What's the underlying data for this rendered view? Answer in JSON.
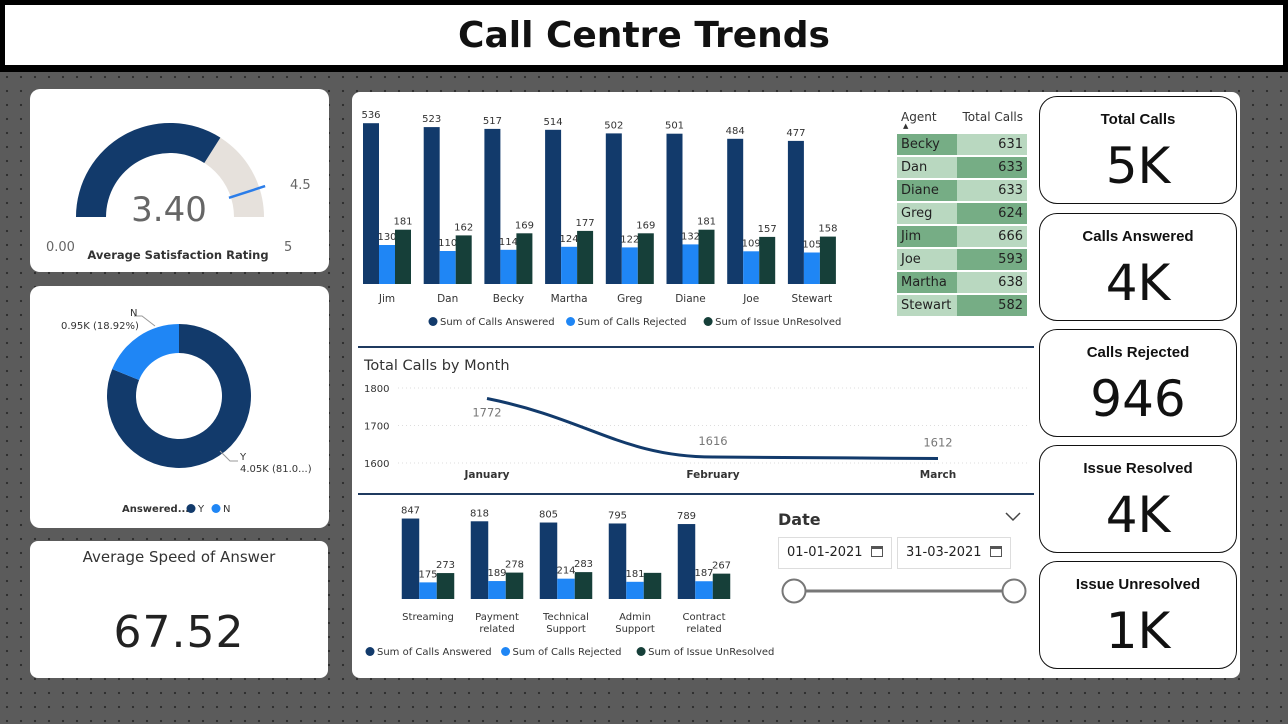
{
  "title": "Call Centre Trends",
  "gauge": {
    "value": "3.40",
    "min": "0.00",
    "max": "5",
    "target": "4.5",
    "label": "Average Satisfaction Rating",
    "value_num": 3.4,
    "max_num": 5,
    "target_num": 4.5
  },
  "donut": {
    "n_label": "N",
    "n_value": "0.95K (18.92%)",
    "y_label": "Y",
    "y_value": "4.05K (81.0...)",
    "y_fraction": 0.8108,
    "legend_title": "Answered...",
    "legend_y": "Y",
    "legend_n": "N"
  },
  "speed": {
    "label": "Average Speed of Answer",
    "value": "67.52"
  },
  "agent_chart": {
    "categories": [
      "Jim",
      "Dan",
      "Becky",
      "Martha",
      "Greg",
      "Diane",
      "Joe",
      "Stewart"
    ],
    "series": [
      {
        "name": "Sum of Calls Answered",
        "values": [
          536,
          523,
          517,
          514,
          502,
          501,
          484,
          477
        ]
      },
      {
        "name": "Sum of Calls Rejected",
        "values": [
          130,
          110,
          114,
          124,
          122,
          132,
          109,
          105
        ]
      },
      {
        "name": "Sum of Issue UnResolved",
        "values": [
          181,
          162,
          169,
          177,
          169,
          181,
          157,
          158
        ]
      }
    ],
    "legend": [
      "Sum of Calls Answered",
      "Sum of Calls Rejected",
      "Sum of Issue UnResolved"
    ]
  },
  "agent_table": {
    "header_agent": "Agent",
    "header_total": "Total Calls",
    "rows": [
      {
        "agent": "Becky",
        "total": "631"
      },
      {
        "agent": "Dan",
        "total": "633"
      },
      {
        "agent": "Diane",
        "total": "633"
      },
      {
        "agent": "Greg",
        "total": "624"
      },
      {
        "agent": "Jim",
        "total": "666"
      },
      {
        "agent": "Joe",
        "total": "593"
      },
      {
        "agent": "Martha",
        "total": "638"
      },
      {
        "agent": "Stewart",
        "total": "582"
      }
    ]
  },
  "line_chart": {
    "title": "Total Calls by Month",
    "x": [
      "January",
      "February",
      "March"
    ],
    "values": [
      1772,
      1616,
      1612
    ],
    "y_ticks": [
      "1800",
      "1700",
      "1600"
    ],
    "ylim": [
      1600,
      1800
    ]
  },
  "topic_chart": {
    "categories": [
      [
        "Streaming"
      ],
      [
        "Payment",
        "related"
      ],
      [
        "Technical",
        "Support"
      ],
      [
        "Admin",
        "Support"
      ],
      [
        "Contract",
        "related"
      ]
    ],
    "series": [
      {
        "name": "Sum of Calls Answered",
        "values": [
          847,
          818,
          805,
          795,
          789
        ]
      },
      {
        "name": "Sum of Calls Rejected",
        "values": [
          175,
          189,
          214,
          181,
          187
        ]
      },
      {
        "name": "Sum of Issue UnResolved",
        "values": [
          273,
          278,
          283,
          null,
          267
        ]
      }
    ],
    "legend": [
      "Sum of Calls Answered",
      "Sum of Calls Rejected",
      "Sum of Issue UnResolved"
    ]
  },
  "date_slicer": {
    "title": "Date",
    "start": "01-01-2021",
    "end": "31-03-2021"
  },
  "kpis": [
    {
      "label": "Total Calls",
      "value": "5K"
    },
    {
      "label": "Calls Answered",
      "value": "4K"
    },
    {
      "label": "Calls Rejected",
      "value": "946"
    },
    {
      "label": "Issue Resolved",
      "value": "4K"
    },
    {
      "label": "Issue Unresolved",
      "value": "1K"
    }
  ],
  "colors": {
    "answered": "#123a6b",
    "rejected": "#1f86f5",
    "unresolved": "#163f39",
    "gauge_rest": "#e6e1dc",
    "table_dark": "#76ad85",
    "table_light": "#b9d8c0"
  }
}
